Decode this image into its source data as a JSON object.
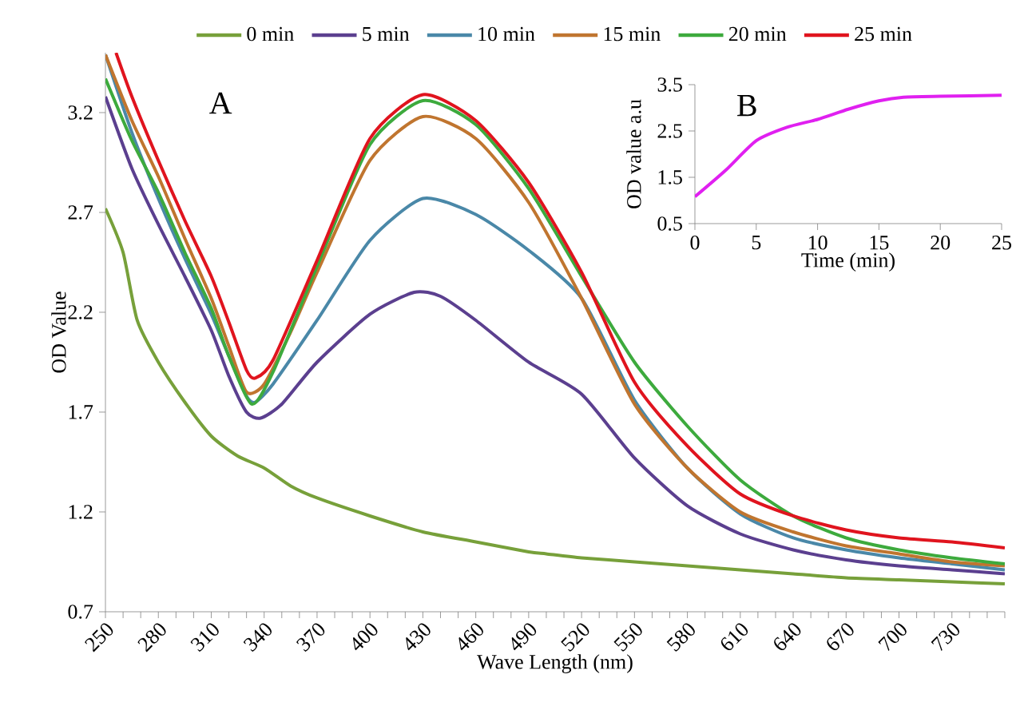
{
  "chart_data": [
    {
      "type": "line",
      "title": "A",
      "xlabel": "Wave Length (nm)",
      "ylabel": "OD Value",
      "xlim": [
        250,
        760
      ],
      "ylim": [
        0.7,
        3.5
      ],
      "xticks": [
        250,
        {
          "value": 260,
          "label": null
        },
        {
          "value": 270,
          "label": null
        },
        280,
        {
          "value": 290,
          "label": null
        },
        {
          "value": 300,
          "label": null
        },
        310,
        {
          "value": 320,
          "label": null
        },
        {
          "value": 330,
          "label": null
        },
        340,
        {
          "value": 350,
          "label": null
        },
        {
          "value": 360,
          "label": null
        },
        370,
        {
          "value": 380,
          "label": null
        },
        {
          "value": 390,
          "label": null
        },
        400,
        {
          "value": 410,
          "label": null
        },
        {
          "value": 420,
          "label": null
        },
        430,
        {
          "value": 440,
          "label": null
        },
        {
          "value": 450,
          "label": null
        },
        460,
        {
          "value": 470,
          "label": null
        },
        {
          "value": 480,
          "label": null
        },
        490,
        {
          "value": 500,
          "label": null
        },
        {
          "value": 510,
          "label": null
        },
        520,
        {
          "value": 530,
          "label": null
        },
        {
          "value": 540,
          "label": null
        },
        550,
        {
          "value": 560,
          "label": null
        },
        {
          "value": 570,
          "label": null
        },
        580,
        {
          "value": 590,
          "label": null
        },
        {
          "value": 600,
          "label": null
        },
        610,
        {
          "value": 620,
          "label": null
        },
        {
          "value": 630,
          "label": null
        },
        640,
        {
          "value": 650,
          "label": null
        },
        {
          "value": 660,
          "label": null
        },
        670,
        {
          "value": 680,
          "label": null
        },
        {
          "value": 690,
          "label": null
        },
        700,
        {
          "value": 710,
          "label": null
        },
        {
          "value": 720,
          "label": null
        },
        730,
        {
          "value": 740,
          "label": null
        },
        {
          "value": 750,
          "label": null
        },
        {
          "value": 760,
          "label": null
        }
      ],
      "yticks": [
        0.7,
        1.2,
        1.7,
        2.2,
        2.7,
        3.2
      ],
      "legend": "top",
      "grid": false,
      "series": [
        {
          "name": "0 min",
          "color": "#77a03a",
          "x": [
            250,
            260,
            268,
            280,
            295,
            310,
            325,
            340,
            355,
            370,
            400,
            430,
            460,
            490,
            500,
            520,
            550,
            580,
            610,
            640,
            670,
            700,
            730,
            760
          ],
          "values": [
            2.72,
            2.5,
            2.16,
            1.95,
            1.75,
            1.58,
            1.48,
            1.42,
            1.33,
            1.27,
            1.18,
            1.1,
            1.05,
            1.0,
            0.99,
            0.97,
            0.95,
            0.93,
            0.91,
            0.89,
            0.87,
            0.86,
            0.85,
            0.84
          ]
        },
        {
          "name": "5 min",
          "color": "#5b3f8f",
          "x": [
            250,
            265,
            280,
            295,
            310,
            320,
            330,
            338,
            350,
            370,
            400,
            425,
            440,
            460,
            490,
            520,
            550,
            580,
            610,
            640,
            670,
            700,
            730,
            760
          ],
          "values": [
            3.28,
            2.92,
            2.64,
            2.38,
            2.11,
            1.88,
            1.7,
            1.67,
            1.74,
            1.95,
            2.19,
            2.3,
            2.28,
            2.16,
            1.95,
            1.79,
            1.47,
            1.23,
            1.09,
            1.01,
            0.96,
            0.93,
            0.91,
            0.89
          ]
        },
        {
          "name": "10 min",
          "color": "#4a88a8",
          "x": [
            250,
            265,
            280,
            295,
            310,
            320,
            330,
            335,
            345,
            370,
            400,
            430,
            460,
            490,
            520,
            550,
            580,
            610,
            640,
            670,
            700,
            730,
            760
          ],
          "values": [
            3.49,
            3.1,
            2.77,
            2.47,
            2.19,
            1.98,
            1.78,
            1.75,
            1.84,
            2.16,
            2.56,
            2.77,
            2.69,
            2.51,
            2.27,
            1.76,
            1.42,
            1.19,
            1.07,
            1.01,
            0.97,
            0.94,
            0.91
          ]
        },
        {
          "name": "15 min",
          "color": "#c0752f",
          "x": [
            250,
            265,
            280,
            295,
            310,
            320,
            330,
            340,
            355,
            370,
            400,
            430,
            460,
            490,
            520,
            550,
            580,
            610,
            640,
            670,
            700,
            730,
            760
          ],
          "values": [
            3.49,
            3.16,
            2.88,
            2.57,
            2.27,
            2.03,
            1.8,
            1.84,
            2.1,
            2.4,
            2.96,
            3.18,
            3.07,
            2.75,
            2.27,
            1.74,
            1.42,
            1.2,
            1.1,
            1.03,
            0.99,
            0.95,
            0.93
          ]
        },
        {
          "name": "20 min",
          "color": "#3daa3d",
          "x": [
            250,
            265,
            280,
            295,
            310,
            320,
            333,
            345,
            370,
            400,
            430,
            460,
            490,
            520,
            550,
            580,
            610,
            640,
            670,
            700,
            730,
            760
          ],
          "values": [
            3.37,
            3.06,
            2.8,
            2.5,
            2.22,
            1.98,
            1.74,
            1.9,
            2.43,
            3.04,
            3.26,
            3.14,
            2.82,
            2.38,
            1.95,
            1.63,
            1.36,
            1.18,
            1.07,
            1.01,
            0.97,
            0.94
          ]
        },
        {
          "name": "25 min",
          "color": "#e0141e",
          "x": [
            256,
            265,
            280,
            295,
            310,
            320,
            330,
            335,
            345,
            370,
            400,
            430,
            460,
            490,
            520,
            550,
            580,
            610,
            640,
            670,
            700,
            730,
            760
          ],
          "values": [
            3.5,
            3.28,
            2.96,
            2.66,
            2.38,
            2.15,
            1.91,
            1.87,
            1.96,
            2.46,
            3.07,
            3.29,
            3.16,
            2.85,
            2.4,
            1.85,
            1.53,
            1.29,
            1.18,
            1.11,
            1.07,
            1.05,
            1.02
          ]
        }
      ]
    },
    {
      "type": "line",
      "title": "B",
      "xlabel": "Time (min)",
      "ylabel": "OD value a.u",
      "xlim": [
        0,
        25
      ],
      "ylim": [
        0.5,
        3.5
      ],
      "xticks": [
        0,
        5,
        10,
        15,
        20,
        25
      ],
      "yticks": [
        0.5,
        1.5,
        2.5,
        3.5
      ],
      "grid": false,
      "series": [
        {
          "color": "#e020f0",
          "x": [
            0,
            2.5,
            5,
            7.5,
            10,
            12.5,
            15,
            17,
            20,
            25
          ],
          "values": [
            1.08,
            1.65,
            2.29,
            2.58,
            2.75,
            2.97,
            3.15,
            3.23,
            3.25,
            3.27
          ]
        }
      ]
    }
  ]
}
